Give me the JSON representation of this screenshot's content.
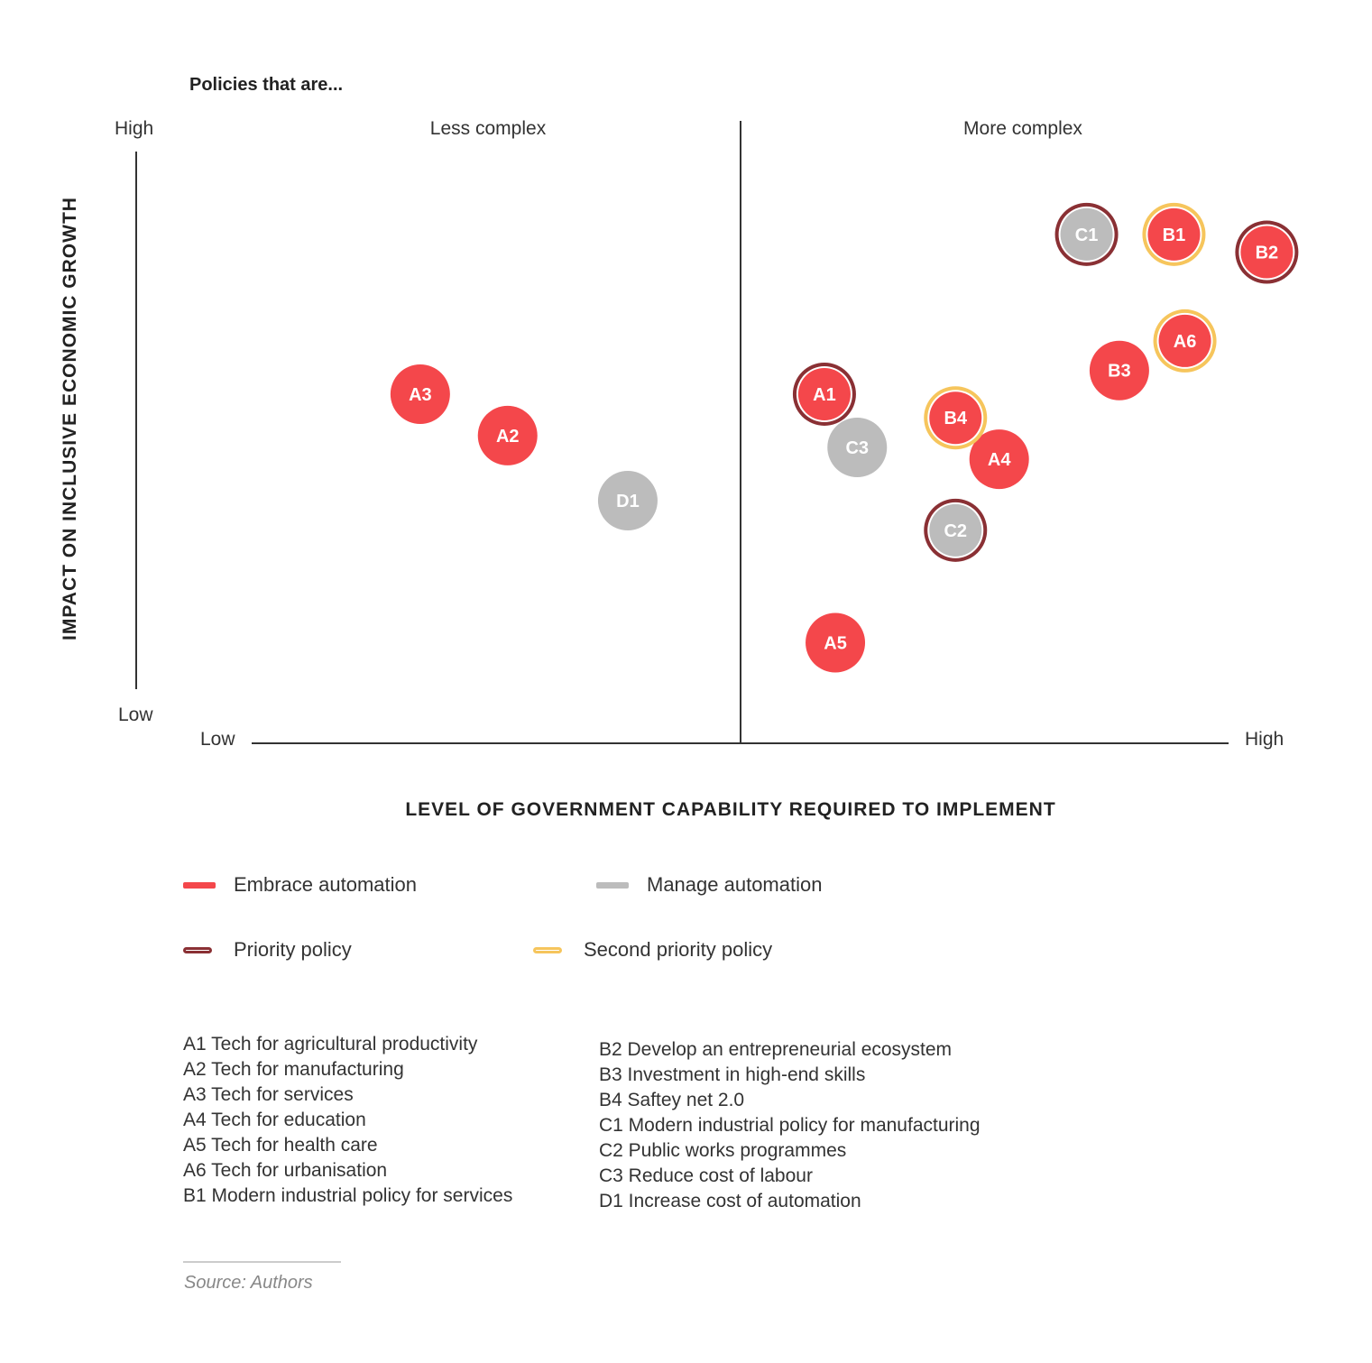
{
  "heading": "Policies that are...",
  "columns": {
    "left": "Less complex",
    "right": "More complex"
  },
  "y_axis": {
    "title": "IMPACT ON INCLUSIVE ECONOMIC GROWTH",
    "high": "High",
    "low": "Low"
  },
  "x_axis": {
    "title": "LEVEL OF GOVERNMENT CAPABILITY REQUIRED TO IMPLEMENT",
    "low": "Low",
    "high": "High"
  },
  "colors": {
    "embrace": "#f4474b",
    "manage": "#bcbcbc",
    "priority": "#8a3034",
    "second_priority": "#f6c55c",
    "axis": "#333333"
  },
  "legend": {
    "embrace": "Embrace automation",
    "manage": "Manage automation",
    "priority": "Priority policy",
    "second_priority": "Second priority policy"
  },
  "chart_data": {
    "type": "scatter",
    "title": "Policies that are...",
    "xlabel": "LEVEL OF GOVERNMENT CAPABILITY REQUIRED TO IMPLEMENT",
    "ylabel": "IMPACT ON INCLUSIVE ECONOMIC GROWTH",
    "xlim": [
      0,
      100
    ],
    "ylim": [
      0,
      100
    ],
    "x_ticks": [
      "Low",
      "High"
    ],
    "y_ticks": [
      "Low",
      "High"
    ],
    "divider_x": 50,
    "grid": false,
    "legend_position": "bottom",
    "points": [
      {
        "id": "A1",
        "x": 63,
        "y": 59,
        "category": "embrace",
        "priority": "priority"
      },
      {
        "id": "A2",
        "x": 34,
        "y": 52,
        "category": "embrace",
        "priority": "none"
      },
      {
        "id": "A3",
        "x": 26,
        "y": 59,
        "category": "embrace",
        "priority": "none"
      },
      {
        "id": "A4",
        "x": 79,
        "y": 48,
        "category": "embrace",
        "priority": "none"
      },
      {
        "id": "A5",
        "x": 64,
        "y": 17,
        "category": "embrace",
        "priority": "none"
      },
      {
        "id": "A6",
        "x": 96,
        "y": 68,
        "category": "embrace",
        "priority": "second"
      },
      {
        "id": "B1",
        "x": 95,
        "y": 86,
        "category": "embrace",
        "priority": "second"
      },
      {
        "id": "B2",
        "x": 103.5,
        "y": 83,
        "category": "embrace",
        "priority": "priority"
      },
      {
        "id": "B3",
        "x": 90,
        "y": 63,
        "category": "embrace",
        "priority": "none"
      },
      {
        "id": "B4",
        "x": 75,
        "y": 55,
        "category": "embrace",
        "priority": "second"
      },
      {
        "id": "C1",
        "x": 87,
        "y": 86,
        "category": "manage",
        "priority": "priority"
      },
      {
        "id": "C2",
        "x": 75,
        "y": 36,
        "category": "manage",
        "priority": "priority"
      },
      {
        "id": "C3",
        "x": 66,
        "y": 50,
        "category": "manage",
        "priority": "none"
      },
      {
        "id": "D1",
        "x": 45,
        "y": 41,
        "category": "manage",
        "priority": "none"
      }
    ]
  },
  "key_left": [
    "A1 Tech for agricultural productivity",
    "A2 Tech for manufacturing",
    "A3 Tech for services",
    "A4 Tech for education",
    "A5 Tech for health care",
    "A6 Tech for urbanisation",
    "B1 Modern industrial policy for services"
  ],
  "key_right": [
    "B2 Develop an entrepreneurial ecosystem",
    "B3 Investment in high-end skills",
    "B4 Saftey net 2.0",
    "C1 Modern industrial policy for manufacturing",
    "C2 Public works programmes",
    "C3 Reduce cost of labour",
    "D1 Increase cost of automation"
  ],
  "source": "Source: Authors"
}
